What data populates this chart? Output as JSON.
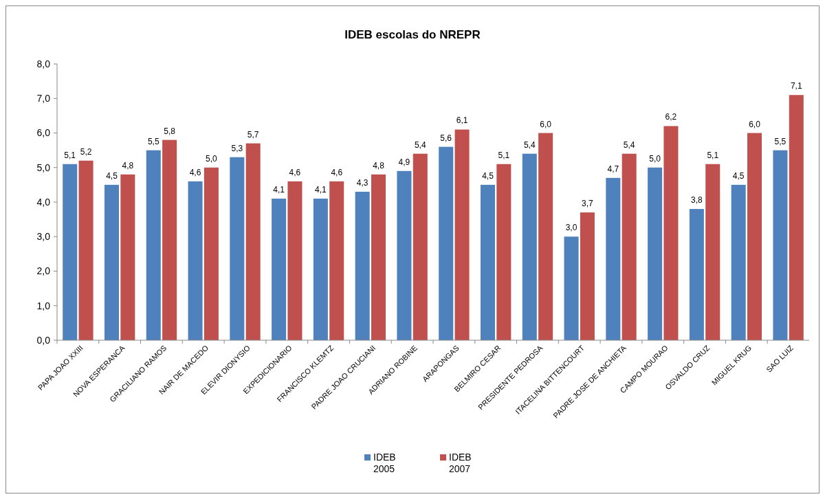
{
  "chart_data": {
    "type": "bar",
    "title": "IDEB escolas do NREPR",
    "categories": [
      "PAPA JOAO XXIII",
      "NOVA ESPERANCA",
      "GRACILIANO RAMOS",
      "NAIR DE MACEDO",
      "ELEVIR DIONYSIO",
      "EXPEDICIONARIO",
      "FRANCISCO KLEMTZ",
      "PADRE JOAO CRUCIANI",
      "ADRIANO ROBINE",
      "ARAPONGAS",
      "BELMIRO CESAR",
      "PRESIDENTE PEDROSA",
      "ITACELINA BITTENCOURT",
      "PADRE JOSE DE ANCHIETA",
      "CAMPO MOURAO",
      "OSVALDO CRUZ",
      "MIGUEL KRUG",
      "SAO LUIZ"
    ],
    "series": [
      {
        "name": "IDEB 2005",
        "color": "#4f81bd",
        "values": [
          5.1,
          4.5,
          5.5,
          4.6,
          5.3,
          4.1,
          4.1,
          4.3,
          4.9,
          5.6,
          4.5,
          5.4,
          3.0,
          4.7,
          5.0,
          3.8,
          4.5,
          5.5
        ],
        "value_labels": [
          "5,1",
          "4,5",
          "5,5",
          "4,6",
          "5,3",
          "4,1",
          "4,1",
          "4,3",
          "4,9",
          "5,6",
          "4,5",
          "5,4",
          "3,0",
          "4,7",
          "5,0",
          "3,8",
          "4,5",
          "5,5"
        ]
      },
      {
        "name": "IDEB 2007",
        "color": "#c0504d",
        "values": [
          5.2,
          4.8,
          5.8,
          5.0,
          5.7,
          4.6,
          4.6,
          4.8,
          5.4,
          6.1,
          5.1,
          6.0,
          3.7,
          5.4,
          6.2,
          5.1,
          6.0,
          7.1
        ],
        "value_labels": [
          "5,2",
          "4,8",
          "5,8",
          "5,0",
          "5,7",
          "4,6",
          "4,6",
          "4,8",
          "5,4",
          "6,1",
          "5,1",
          "6,0",
          "3,7",
          "5,4",
          "6,2",
          "5,1",
          "6,0",
          "7,1"
        ]
      }
    ],
    "ylim": [
      0,
      8
    ],
    "yticks": [
      {
        "value": 0,
        "label": "0,0"
      },
      {
        "value": 1,
        "label": "1,0"
      },
      {
        "value": 2,
        "label": "2,0"
      },
      {
        "value": 3,
        "label": "3,0"
      },
      {
        "value": 4,
        "label": "4,0"
      },
      {
        "value": 5,
        "label": "5,0"
      },
      {
        "value": 6,
        "label": "6,0"
      },
      {
        "value": 7,
        "label": "7,0"
      },
      {
        "value": 8,
        "label": "8,0"
      }
    ],
    "legend": "bottom"
  }
}
